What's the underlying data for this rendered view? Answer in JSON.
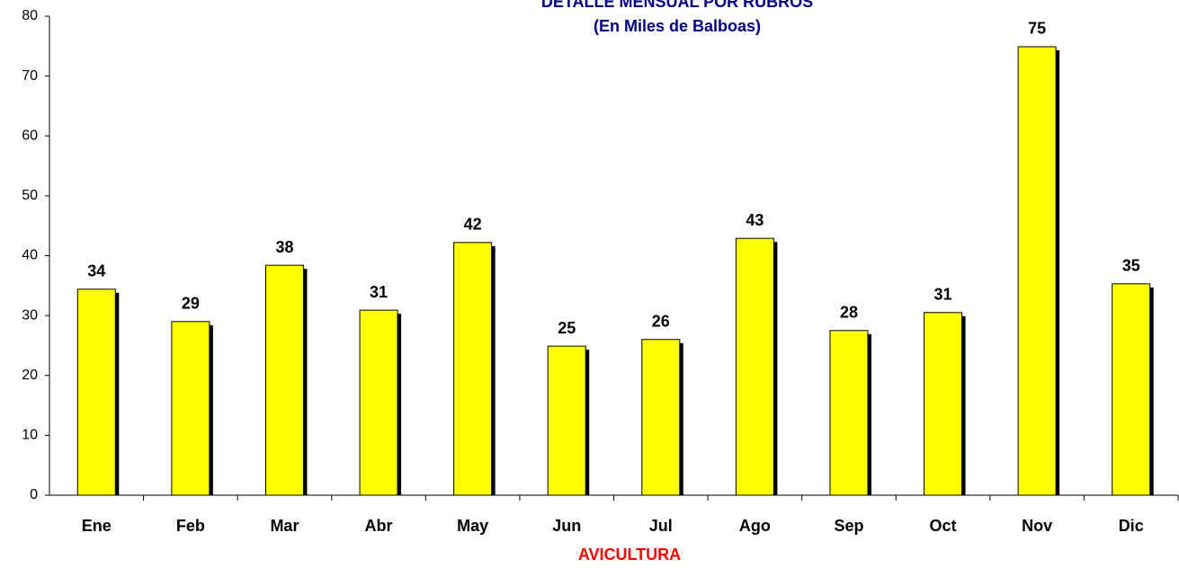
{
  "chart_data": {
    "type": "bar",
    "title": "DETALLE MENSUAL POR RUBROS",
    "subtitle": "(En Miles de Balboas)",
    "x_label": "AVICULTURA",
    "categories": [
      "Ene",
      "Feb",
      "Mar",
      "Abr",
      "May",
      "Jun",
      "Jul",
      "Ago",
      "Sep",
      "Oct",
      "Nov",
      "Dic"
    ],
    "values": [
      34.4,
      29.0,
      38.4,
      30.9,
      42.2,
      24.9,
      26.0,
      42.9,
      27.5,
      30.5,
      74.9,
      35.3
    ],
    "value_labels": [
      "34",
      "29",
      "38",
      "31",
      "42",
      "25",
      "26",
      "43",
      "28",
      "31",
      "75",
      "35"
    ],
    "color": "#ffff00",
    "ylim": [
      0,
      80
    ],
    "yticks": [
      0,
      10,
      20,
      30,
      40,
      50,
      60,
      70,
      80
    ]
  }
}
